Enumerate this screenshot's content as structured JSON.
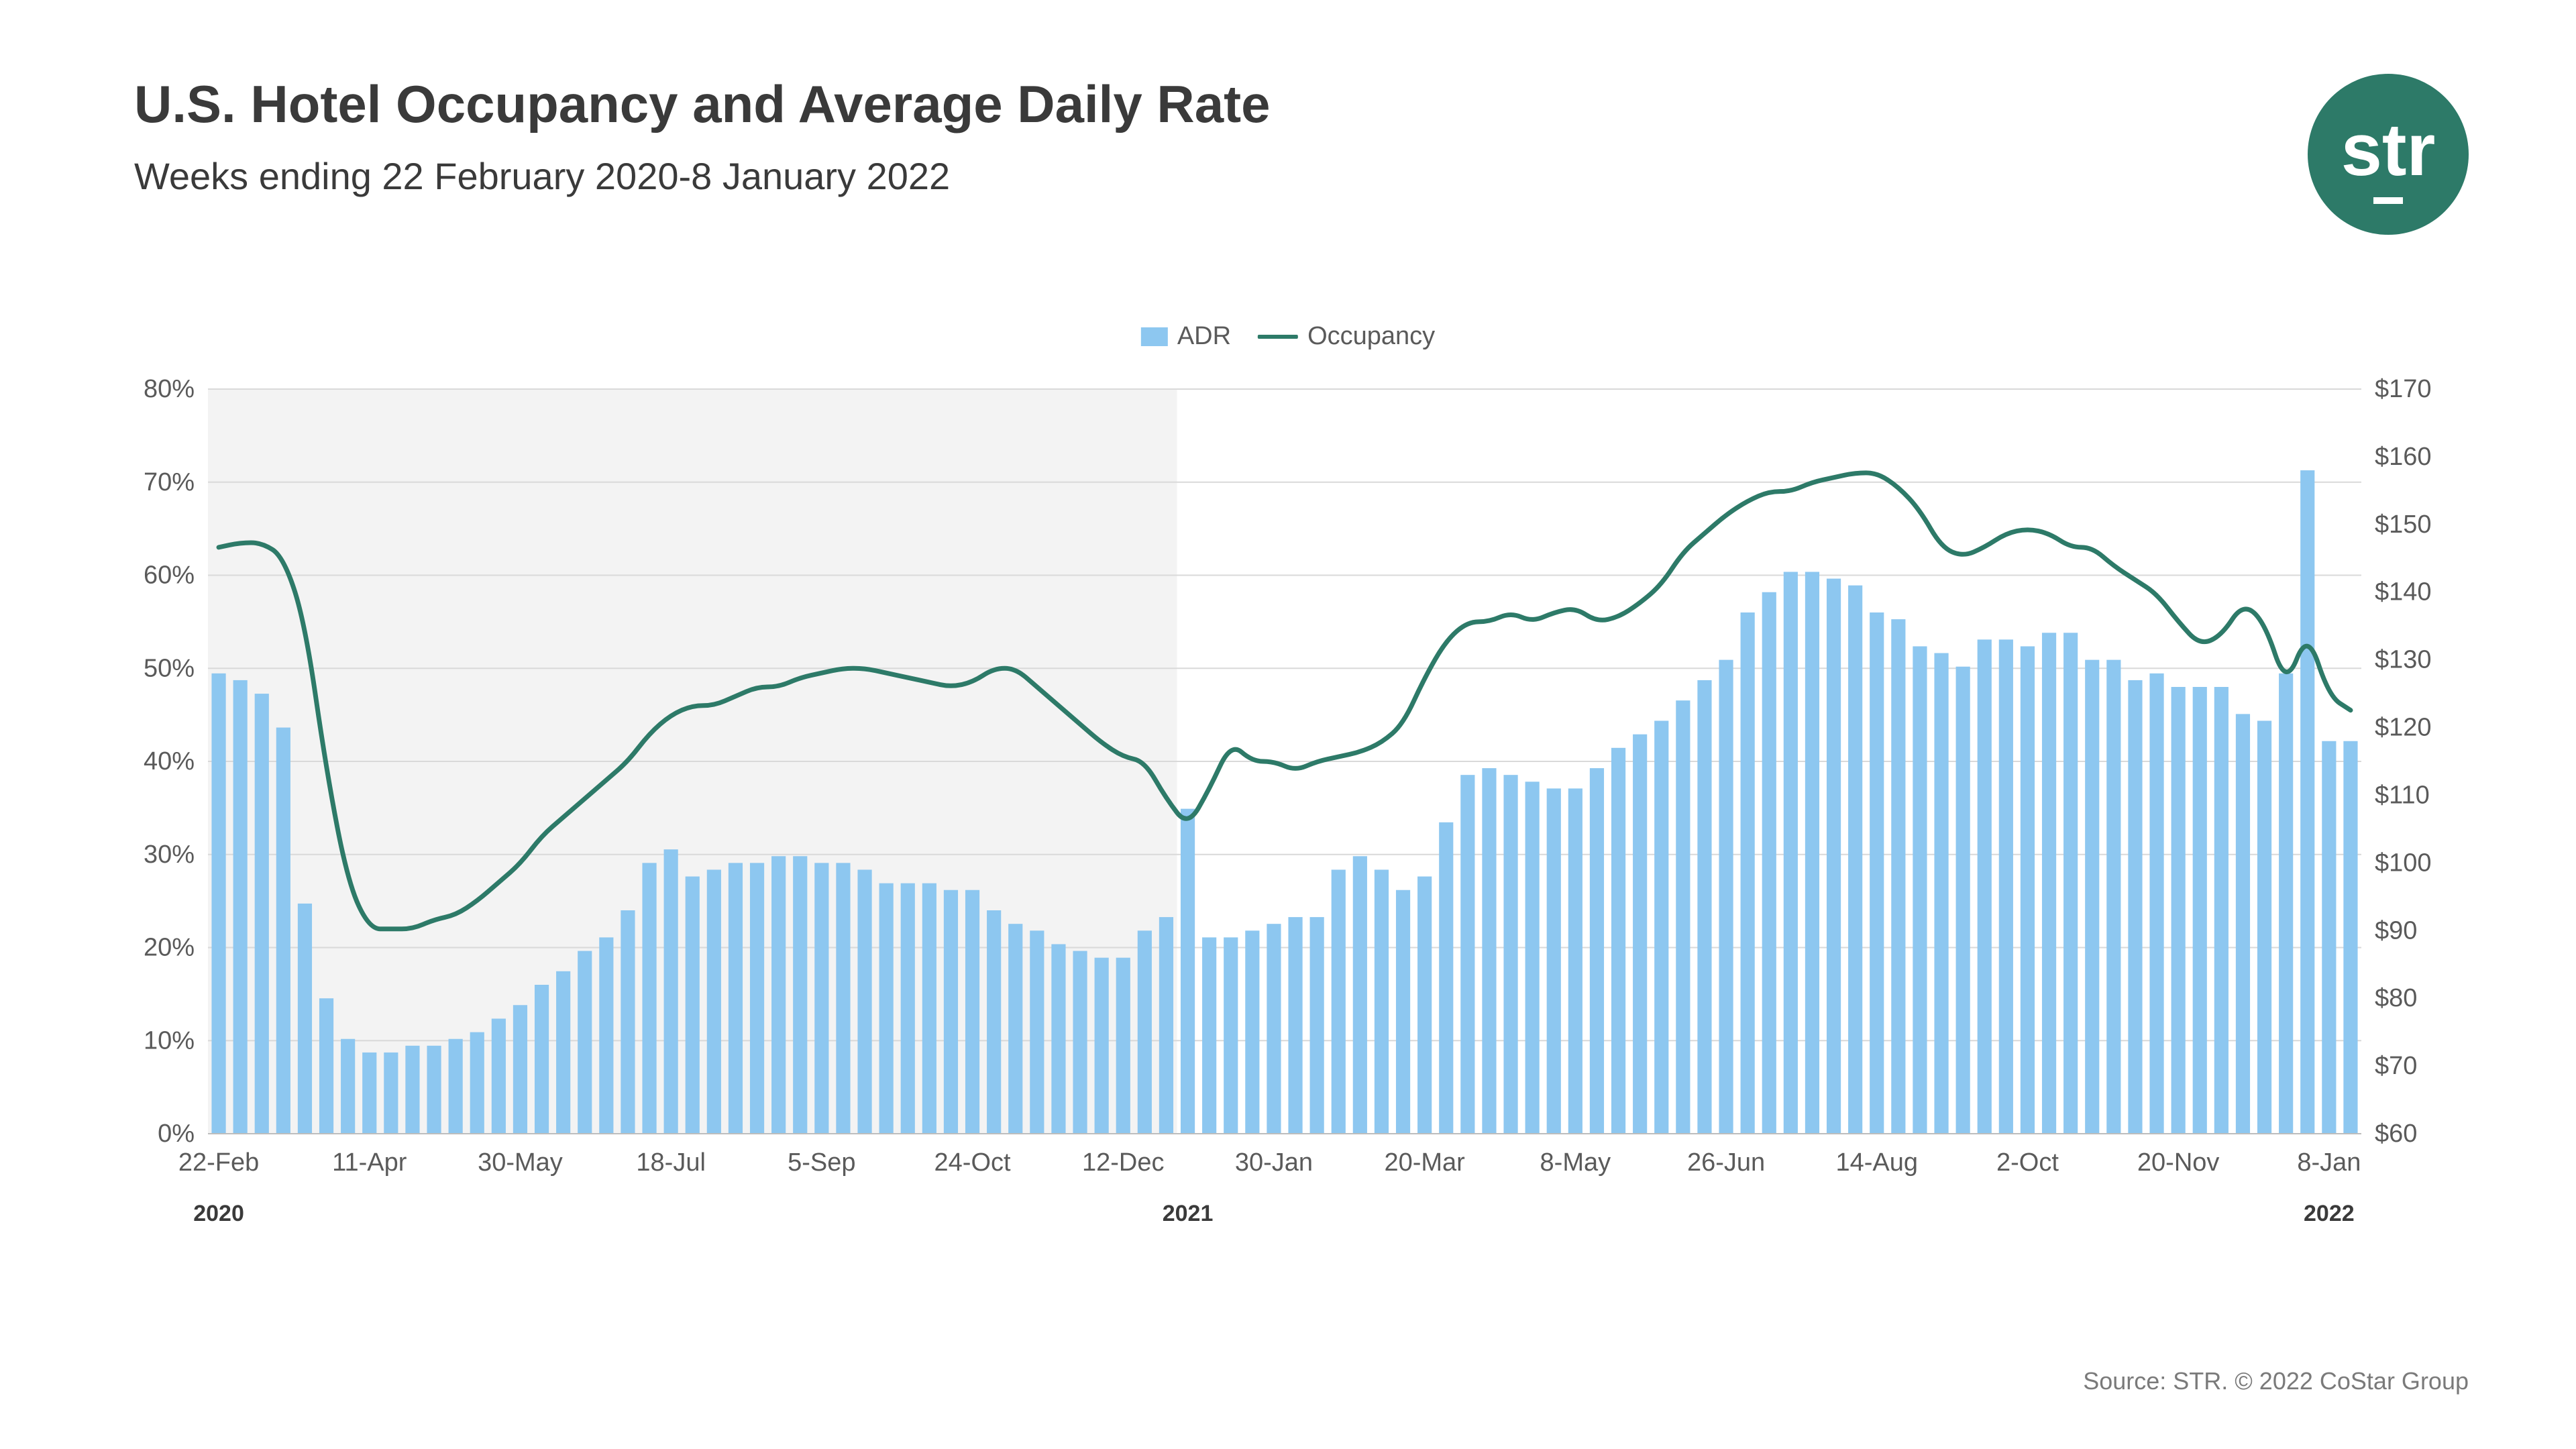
{
  "title": "U.S. Hotel Occupancy and Average Daily Rate",
  "subtitle": "Weeks ending 22 February 2020-8 January 2022",
  "source": "Source: STR. © 2022 CoStar Group",
  "logo": {
    "text": "str",
    "bg": "#2d7a68"
  },
  "legend": {
    "adr": "ADR",
    "occupancy": "Occupancy"
  },
  "colors": {
    "bar": "#8dc7f0",
    "line": "#2d7a68",
    "bg": "#ffffff",
    "grid": "#d9d9d9",
    "shade": "#f3f3f3",
    "text": "#5a5a5a"
  },
  "chart": {
    "left_axis": {
      "min": 0,
      "max": 80,
      "step": 10,
      "suffix": "%"
    },
    "right_axis": {
      "min": 60,
      "max": 170,
      "step": 10,
      "prefix": "$"
    },
    "bar_width_ratio": 0.66,
    "line_width": 7,
    "shade_end_index": 45,
    "x_ticks": [
      {
        "i": 0,
        "label": "22-Feb"
      },
      {
        "i": 7,
        "label": "11-Apr"
      },
      {
        "i": 14,
        "label": "30-May"
      },
      {
        "i": 21,
        "label": "18-Jul"
      },
      {
        "i": 28,
        "label": "5-Sep"
      },
      {
        "i": 35,
        "label": "24-Oct"
      },
      {
        "i": 42,
        "label": "12-Dec"
      },
      {
        "i": 49,
        "label": "30-Jan"
      },
      {
        "i": 56,
        "label": "20-Mar"
      },
      {
        "i": 63,
        "label": "8-May"
      },
      {
        "i": 70,
        "label": "26-Jun"
      },
      {
        "i": 77,
        "label": "14-Aug"
      },
      {
        "i": 84,
        "label": "2-Oct"
      },
      {
        "i": 91,
        "label": "20-Nov"
      },
      {
        "i": 98,
        "label": "8-Jan"
      }
    ],
    "year_labels": [
      {
        "i": 0,
        "label": "2020"
      },
      {
        "i": 45,
        "label": "2021"
      },
      {
        "i": 98,
        "label": "2022"
      }
    ],
    "adr": [
      128,
      127,
      125,
      120,
      94,
      80,
      74,
      72,
      72,
      73,
      73,
      74,
      75,
      77,
      79,
      82,
      84,
      87,
      89,
      93,
      100,
      102,
      98,
      99,
      100,
      100,
      101,
      101,
      100,
      100,
      99,
      97,
      97,
      97,
      96,
      96,
      93,
      91,
      90,
      88,
      87,
      86,
      86,
      90,
      92,
      108,
      89,
      89,
      90,
      91,
      92,
      92,
      99,
      101,
      99,
      96,
      98,
      106,
      113,
      114,
      113,
      112,
      111,
      111,
      114,
      117,
      119,
      121,
      124,
      127,
      130,
      137,
      140,
      143,
      143,
      142,
      141,
      137,
      136,
      132,
      131,
      129,
      133,
      133,
      132,
      134,
      134,
      130,
      130,
      127,
      128,
      126,
      126,
      126,
      122,
      121,
      128,
      158,
      118,
      118
    ],
    "occupancy": [
      63,
      63.5,
      63.5,
      62,
      55,
      39,
      27,
      22,
      22,
      22,
      23,
      23.5,
      25,
      27,
      29,
      32,
      34,
      36,
      38,
      40,
      43,
      45,
      46,
      46,
      47,
      48,
      48,
      49,
      49.5,
      50,
      50,
      49.5,
      49,
      48.5,
      48,
      48.5,
      50,
      50,
      48,
      46,
      44,
      42,
      40.5,
      40,
      36,
      33,
      37,
      42,
      40,
      40,
      39,
      40,
      40.5,
      41,
      42,
      44,
      49,
      53,
      55,
      55,
      56,
      55,
      56,
      56.5,
      55,
      55.5,
      57,
      59,
      62.5,
      64.5,
      66.5,
      68,
      69,
      69,
      70,
      70.5,
      71,
      71,
      69.5,
      67,
      63,
      62,
      63,
      64.5,
      65,
      64.5,
      63,
      63,
      61,
      59.5,
      58,
      55,
      52.5,
      53.5,
      57,
      55,
      48,
      54,
      47,
      45.5
    ]
  }
}
